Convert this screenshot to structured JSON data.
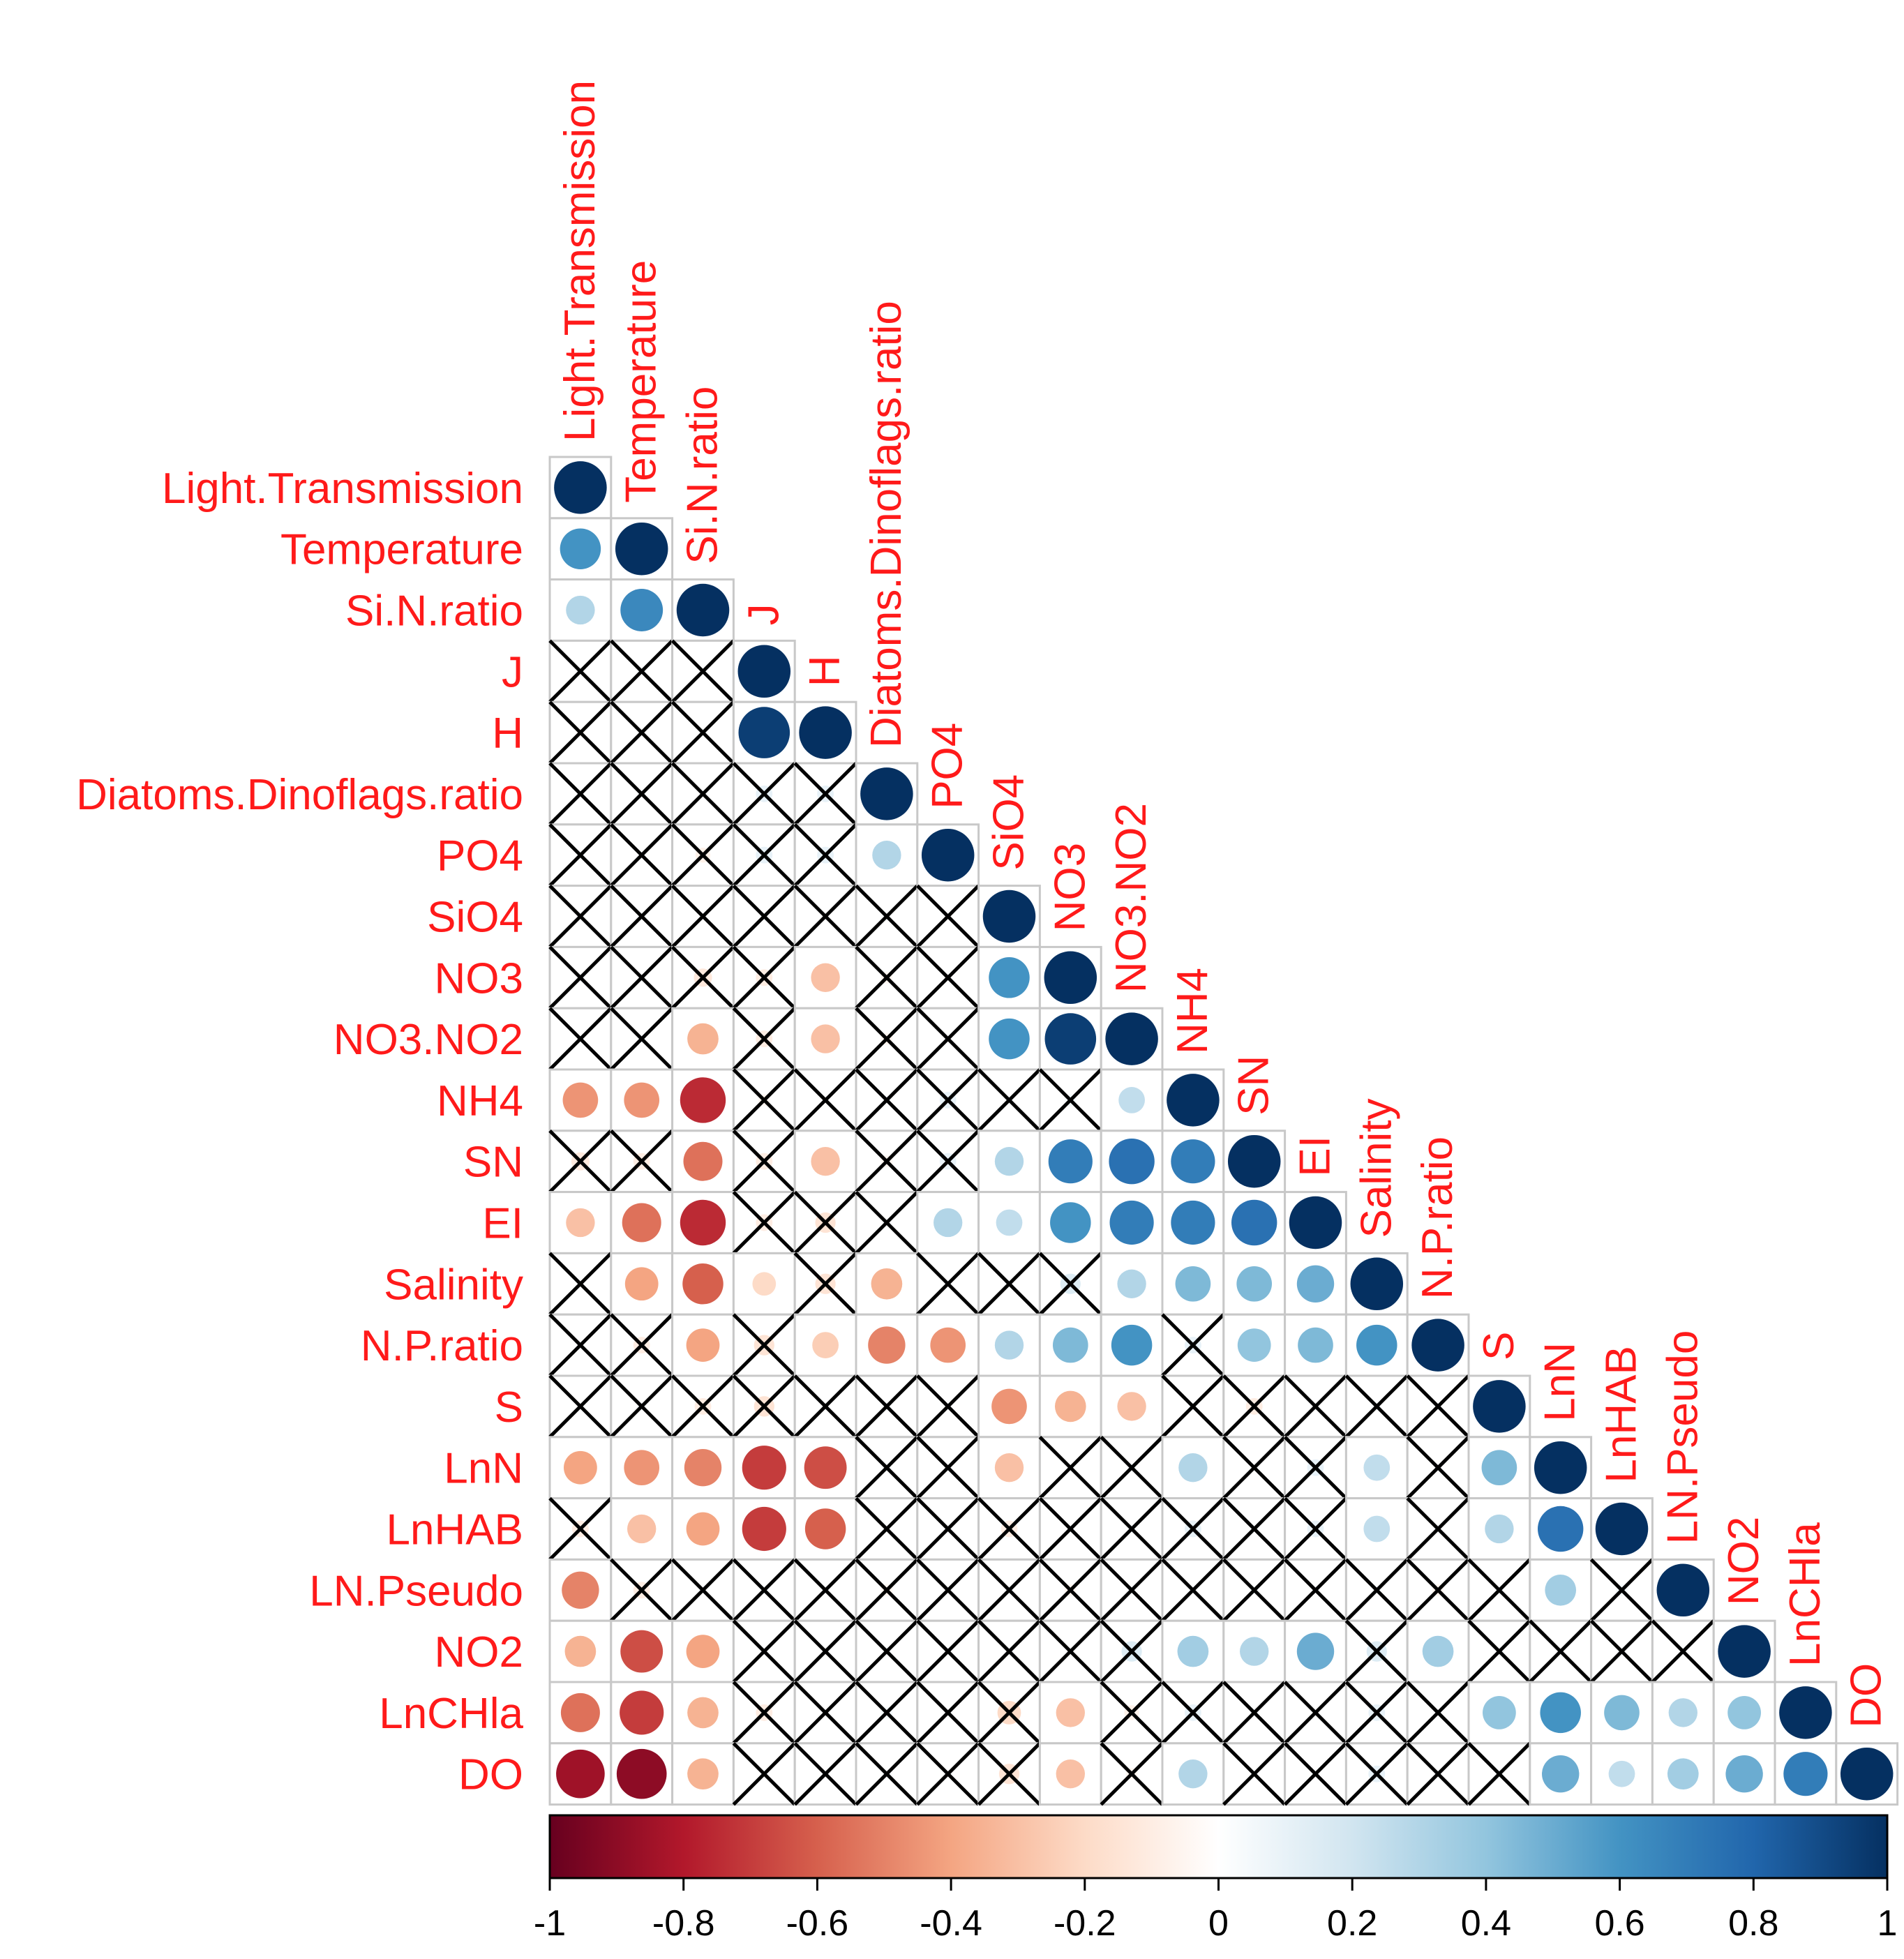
{
  "chart_data": {
    "type": "heatmap",
    "subtype": "correlation-lower-triangle",
    "variables": [
      "Light.Transmission",
      "Temperature",
      "Si.N.ratio",
      "J",
      "H",
      "Diatoms.Dinoflags.ratio",
      "PO4",
      "SiO4",
      "NO3",
      "NO3.NO2",
      "NH4",
      "SN",
      "EI",
      "Salinity",
      "N.P.ratio",
      "S",
      "LnN",
      "LnHAB",
      "LN.Pseudo",
      "NO2",
      "LnCHla",
      "DO"
    ],
    "matrix": [
      [
        1
      ],
      [
        0.6,
        1
      ],
      [
        0.3,
        0.65,
        1
      ],
      [
        0.02,
        0.03,
        0.02,
        1
      ],
      [
        -0.03,
        0.02,
        0.03,
        0.95,
        1
      ],
      [
        0.02,
        0.03,
        0.02,
        0.1,
        0.1,
        1
      ],
      [
        0.03,
        0.02,
        -0.08,
        0.1,
        0.1,
        0.3,
        1
      ],
      [
        0.02,
        0.03,
        0.02,
        0.03,
        0.02,
        0.03,
        -0.02,
        1
      ],
      [
        0.03,
        0.02,
        -0.12,
        -0.1,
        -0.3,
        -0.05,
        0.02,
        0.6,
        1
      ],
      [
        0.02,
        0.03,
        -0.35,
        -0.1,
        -0.3,
        -0.05,
        0.02,
        0.6,
        0.95,
        1
      ],
      [
        -0.45,
        -0.45,
        -0.75,
        -0.05,
        -0.02,
        0.03,
        0.1,
        0.02,
        0.05,
        0.25,
        1
      ],
      [
        -0.12,
        -0.1,
        -0.55,
        -0.1,
        -0.3,
        -0.05,
        0.1,
        0.3,
        0.7,
        0.75,
        0.7,
        1
      ],
      [
        -0.3,
        -0.55,
        -0.75,
        -0.1,
        -0.15,
        0.03,
        0.3,
        0.25,
        0.6,
        0.7,
        0.7,
        0.75,
        1
      ],
      [
        0.02,
        -0.4,
        -0.6,
        -0.2,
        -0.15,
        -0.35,
        0.02,
        0.03,
        0.15,
        0.3,
        0.45,
        0.45,
        0.5,
        1
      ],
      [
        0.03,
        -0.1,
        -0.4,
        -0.15,
        -0.25,
        -0.5,
        -0.45,
        0.3,
        0.45,
        0.6,
        0.1,
        0.4,
        0.45,
        0.6,
        1
      ],
      [
        0.02,
        0.03,
        -0.1,
        -0.15,
        0.02,
        0.03,
        0.02,
        -0.45,
        -0.35,
        -0.3,
        0.03,
        -0.1,
        0.02,
        0.03,
        0.02,
        1
      ],
      [
        -0.4,
        -0.45,
        -0.5,
        -0.7,
        -0.65,
        0.03,
        0.02,
        -0.3,
        0.02,
        0.03,
        0.3,
        0.02,
        0.1,
        0.25,
        0.02,
        0.45,
        1
      ],
      [
        -0.1,
        -0.3,
        -0.4,
        -0.7,
        -0.6,
        0.02,
        0.03,
        -0.1,
        0.02,
        0.03,
        0.1,
        0.02,
        0.1,
        0.25,
        0.03,
        0.3,
        0.75,
        1
      ],
      [
        -0.5,
        -0.1,
        0.02,
        0.03,
        0.02,
        -0.05,
        0.02,
        0.03,
        -0.05,
        0.03,
        0.02,
        0.03,
        0.02,
        0.03,
        -0.05,
        0.03,
        0.35,
        0.05,
        1
      ],
      [
        -0.35,
        -0.65,
        -0.4,
        0.03,
        0.02,
        0.03,
        0.02,
        0.03,
        0.02,
        0.15,
        0.35,
        0.3,
        0.5,
        0.15,
        0.35,
        0.03,
        0.02,
        0.03,
        0.02,
        1
      ],
      [
        -0.55,
        -0.7,
        -0.35,
        -0.1,
        0.02,
        0.05,
        0.02,
        -0.2,
        -0.3,
        -0.08,
        0.1,
        0.03,
        0.02,
        0.1,
        0.02,
        0.4,
        0.6,
        0.45,
        0.3,
        0.4,
        1
      ],
      [
        -0.85,
        -0.9,
        -0.35,
        0.03,
        0.02,
        0.03,
        0.02,
        -0.15,
        -0.3,
        -0.05,
        0.3,
        0.02,
        0.03,
        0.1,
        0.02,
        0.03,
        0.5,
        0.25,
        0.35,
        0.5,
        0.7,
        1
      ]
    ],
    "insignificant": [
      [
        0
      ],
      [
        0,
        0
      ],
      [
        0,
        0,
        0
      ],
      [
        1,
        1,
        1,
        0
      ],
      [
        1,
        1,
        1,
        0,
        0
      ],
      [
        1,
        1,
        1,
        1,
        1,
        0
      ],
      [
        1,
        1,
        1,
        1,
        1,
        0,
        0
      ],
      [
        1,
        1,
        1,
        1,
        1,
        1,
        1,
        0
      ],
      [
        1,
        1,
        1,
        1,
        0,
        1,
        1,
        0,
        0
      ],
      [
        1,
        1,
        0,
        1,
        0,
        1,
        1,
        0,
        0,
        0
      ],
      [
        0,
        0,
        0,
        1,
        1,
        1,
        1,
        1,
        1,
        0,
        0
      ],
      [
        1,
        1,
        0,
        1,
        0,
        1,
        1,
        0,
        0,
        0,
        0,
        0
      ],
      [
        0,
        0,
        0,
        1,
        1,
        1,
        0,
        0,
        0,
        0,
        0,
        0,
        0
      ],
      [
        1,
        0,
        0,
        0,
        1,
        0,
        1,
        1,
        1,
        0,
        0,
        0,
        0,
        0
      ],
      [
        1,
        1,
        0,
        1,
        0,
        0,
        0,
        0,
        0,
        0,
        1,
        0,
        0,
        0,
        0
      ],
      [
        1,
        1,
        1,
        1,
        1,
        1,
        1,
        0,
        0,
        0,
        1,
        1,
        1,
        1,
        1,
        0
      ],
      [
        0,
        0,
        0,
        0,
        0,
        1,
        1,
        0,
        1,
        1,
        0,
        1,
        1,
        0,
        1,
        0,
        0
      ],
      [
        1,
        0,
        0,
        0,
        0,
        1,
        1,
        1,
        1,
        1,
        1,
        1,
        1,
        0,
        1,
        0,
        0,
        0
      ],
      [
        0,
        1,
        1,
        1,
        1,
        1,
        1,
        1,
        1,
        1,
        1,
        1,
        1,
        1,
        1,
        1,
        0,
        1,
        0
      ],
      [
        0,
        0,
        0,
        1,
        1,
        1,
        1,
        1,
        1,
        1,
        0,
        0,
        0,
        1,
        0,
        1,
        1,
        1,
        1,
        0
      ],
      [
        0,
        0,
        0,
        1,
        1,
        1,
        1,
        1,
        0,
        1,
        1,
        1,
        1,
        1,
        1,
        0,
        0,
        0,
        0,
        0,
        0
      ],
      [
        0,
        0,
        0,
        1,
        1,
        1,
        1,
        1,
        0,
        1,
        0,
        1,
        1,
        1,
        1,
        1,
        0,
        0,
        0,
        0,
        0,
        0
      ]
    ],
    "colorbar": {
      "range": [
        -1,
        1
      ],
      "tick_labels": [
        "-1",
        "-0.8",
        "-0.6",
        "-0.4",
        "-0.2",
        "0",
        "0.2",
        "0.4",
        "0.6",
        "0.8",
        "1"
      ],
      "colors": [
        "#67001f",
        "#b2182b",
        "#d6604d",
        "#f4a582",
        "#fddbc7",
        "#ffffff",
        "#d1e5f0",
        "#92c5de",
        "#4393c3",
        "#2166ac",
        "#053061"
      ]
    },
    "label_color": "#ff1a1a",
    "grid_color": "#c8c8c8"
  }
}
